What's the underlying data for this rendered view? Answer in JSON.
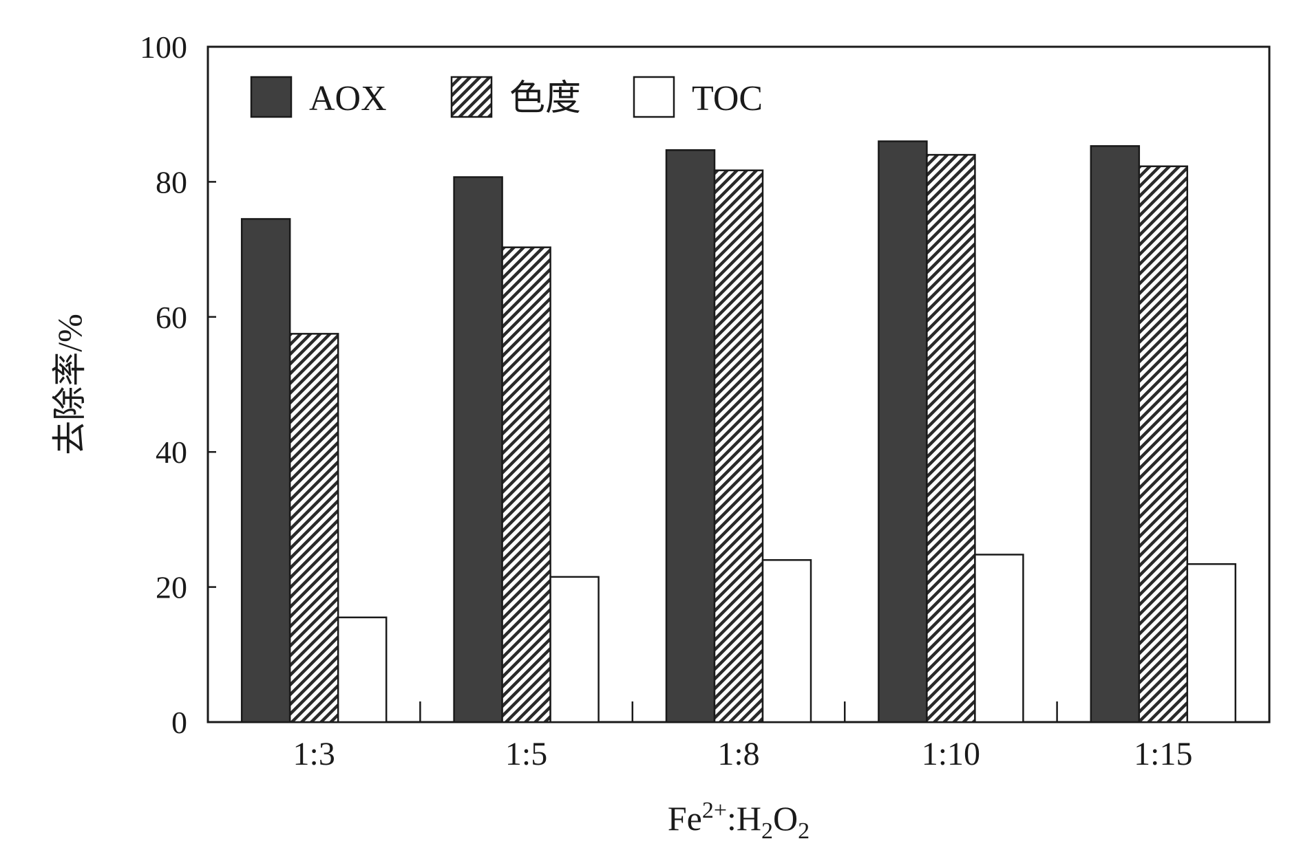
{
  "chart_data": {
    "type": "bar",
    "categories": [
      "1:3",
      "1:5",
      "1:8",
      "1:10",
      "1:15"
    ],
    "series": [
      {
        "name": "AOX",
        "values": [
          74.5,
          80.7,
          84.7,
          86.0,
          85.3
        ],
        "fill": "#3f3f3f",
        "pattern": "solid"
      },
      {
        "name": "色度",
        "values": [
          57.5,
          70.3,
          81.7,
          84.0,
          82.3
        ],
        "fill": "#ffffff",
        "pattern": "diagonal-hatch"
      },
      {
        "name": "TOC",
        "values": [
          15.5,
          21.5,
          24.0,
          24.8,
          23.4
        ],
        "fill": "#ffffff",
        "pattern": "none"
      }
    ],
    "ylim": [
      0,
      100
    ],
    "yticks": [
      0,
      20,
      40,
      60,
      80,
      100
    ],
    "ylabel": "去除率/%",
    "xlabel": {
      "main": "Fe",
      "sup": "2+",
      "mid": ":H",
      "sub1": "2",
      "o": "O",
      "sub2": "2"
    },
    "legend_position": "top-left",
    "grid": false
  }
}
